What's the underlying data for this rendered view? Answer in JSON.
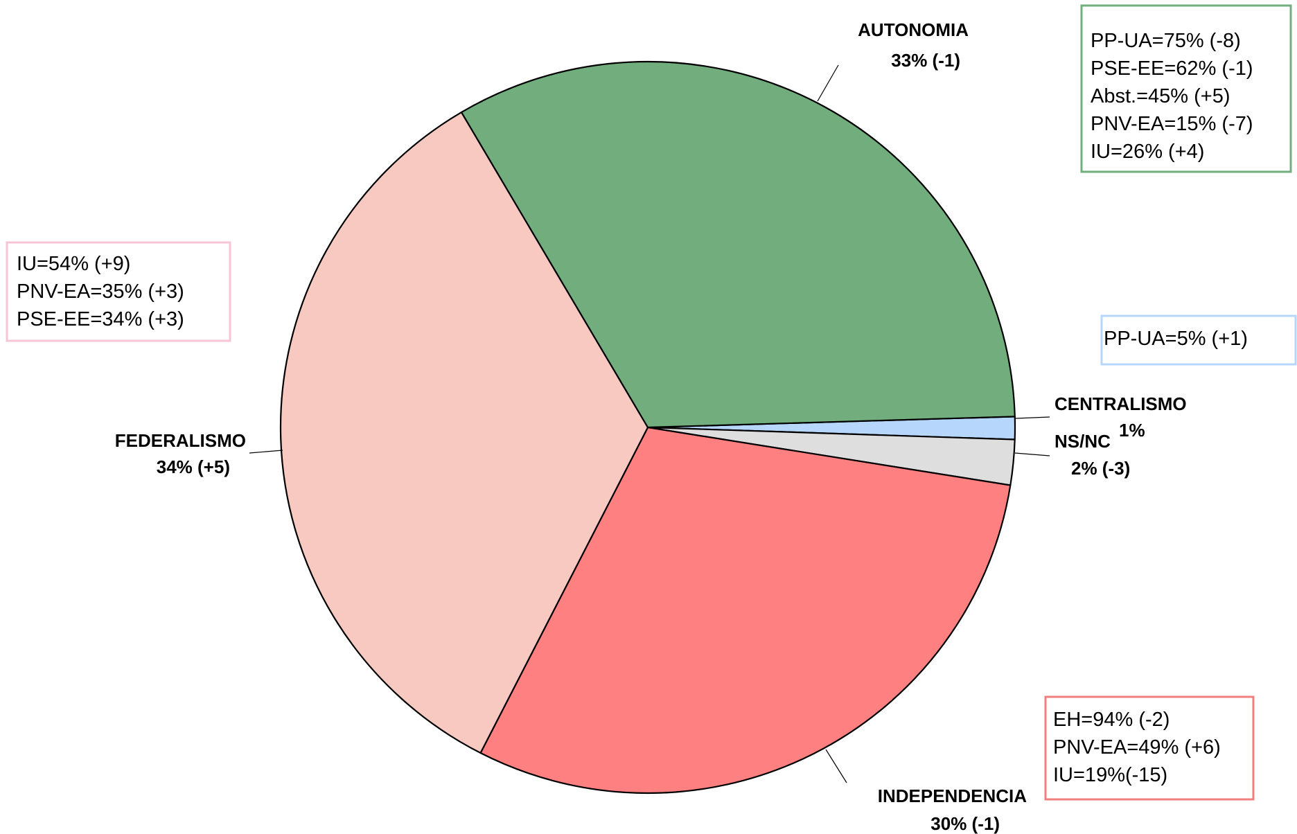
{
  "chart_data": {
    "type": "pie",
    "title": "",
    "slices": [
      {
        "key": "autonomia",
        "label": "AUTONOMIA",
        "value_label": "33%",
        "change_label": "(-1)",
        "value": 33,
        "color": "#72ad7e",
        "box_border": "#72ad7e",
        "box_lines": [
          "PP-UA=75% (-8)",
          "PSE-EE=62% (-1)",
          "Abst.=45% (+5)",
          "PNV-EA=15% (-7)",
          "IU=26% (+4)"
        ]
      },
      {
        "key": "centralismo",
        "label": "CENTRALISMO",
        "value_label": "1%",
        "change_label": "",
        "value": 1,
        "color": "#b7d6fb",
        "box_border": "#b7d6fb",
        "box_lines": [
          "PP-UA=5% (+1)"
        ]
      },
      {
        "key": "nsnc",
        "label": "NS/NC",
        "value_label": "2%",
        "change_label": "(-3)",
        "value": 2,
        "color": "#dedede",
        "box_border": "",
        "box_lines": []
      },
      {
        "key": "independencia",
        "label": "INDEPENDENCIA",
        "value_label": "30%",
        "change_label": "(-1)",
        "value": 30,
        "color": "#ff8080",
        "box_border": "#f08080",
        "box_lines": [
          "EH=94% (-2)",
          "PNV-EA=49% (+6)",
          "IU=19%(-15)"
        ]
      },
      {
        "key": "federalismo",
        "label": "FEDERALISMO",
        "value_label": "34%",
        "change_label": "(+5)",
        "value": 34,
        "color": "#f7c9c1",
        "box_border": "#f7c5d5",
        "box_lines": [
          "IU=54% (+9)",
          "PNV-EA=35% (+3)",
          "PSE-EE=34% (+3)"
        ]
      }
    ]
  }
}
